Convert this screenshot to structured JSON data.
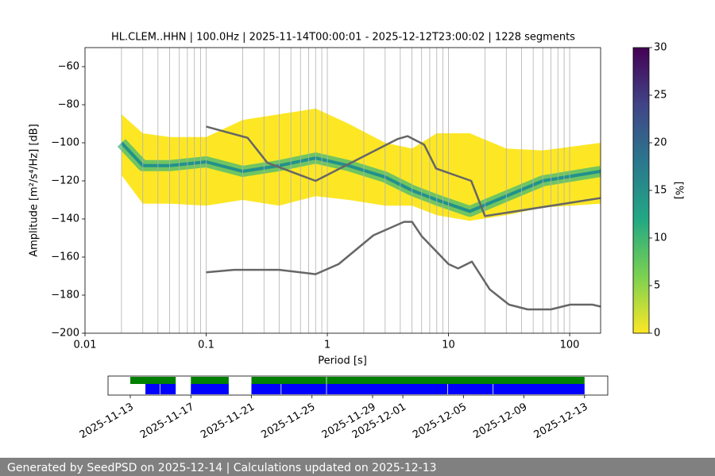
{
  "chart_data": {
    "type": "ppsd",
    "title": "HL.CLEM..HHN | 100.0Hz | 2025-11-14T00:00:01 - 2025-12-12T23:00:02 | 1228 segments",
    "x_label": "Period [s]",
    "y_label": "Amplitude [m²/s⁴/Hz] [dB]",
    "log_x": true,
    "xlim": [
      0.01,
      180
    ],
    "ylim": [
      -200,
      -50
    ],
    "xticks": [
      0.01,
      0.1,
      1,
      10,
      100
    ],
    "yticks": [
      {
        "value": -60,
        "label": "−60"
      },
      {
        "value": -80,
        "label": "−80"
      },
      {
        "value": -100,
        "label": "−100"
      },
      {
        "value": -120,
        "label": "−120"
      },
      {
        "value": -140,
        "label": "−140"
      },
      {
        "value": -160,
        "label": "−160"
      },
      {
        "value": -180,
        "label": "−180"
      },
      {
        "value": -200,
        "label": "−200"
      }
    ],
    "xgrid": [
      0.02,
      0.03,
      0.04,
      0.05,
      0.06,
      0.07,
      0.08,
      0.09,
      0.1,
      0.2,
      0.3,
      0.4,
      0.5,
      0.6,
      0.7,
      0.8,
      0.9,
      1,
      2,
      3,
      4,
      5,
      6,
      7,
      8,
      9,
      10,
      20,
      30,
      40,
      50,
      60,
      70,
      80,
      90,
      100
    ],
    "band": {
      "x": [
        0.02,
        0.03,
        0.05,
        0.1,
        0.2,
        0.4,
        0.8,
        1.5,
        3,
        5,
        8,
        15,
        30,
        60,
        180
      ],
      "high": [
        -85,
        -95,
        -97,
        -97,
        -88,
        -85,
        -82,
        -90,
        -100,
        -103,
        -95,
        -95,
        -103,
        -104,
        -100
      ],
      "low": [
        -117,
        -132,
        -132,
        -133,
        -130,
        -133,
        -128,
        -130,
        -133,
        -133,
        -138,
        -141,
        -138,
        -134,
        -132
      ],
      "mode": [
        -100,
        -112,
        -112,
        -110,
        -115,
        -112,
        -108,
        -112,
        -118,
        -125,
        -130,
        -136,
        -128,
        -120,
        -115
      ],
      "band_color": "#fde725",
      "mode_color": "#35b779",
      "mode_core_color": "#21918c"
    },
    "noise_models": {
      "color": "#666666",
      "high": {
        "x": [
          0.1,
          0.22,
          0.32,
          0.8,
          3.8,
          4.6,
          6.3,
          7.9,
          15.4,
          20,
          180
        ],
        "values": [
          -91.5,
          -97.4,
          -110.5,
          -120,
          -98,
          -96.5,
          -101,
          -113.5,
          -120,
          -138.5,
          -129
        ]
      },
      "low": {
        "x": [
          0.1,
          0.17,
          0.4,
          0.8,
          1.24,
          2.4,
          4.3,
          5,
          6,
          10,
          12,
          15.6,
          21.9,
          31.6,
          45,
          70,
          101,
          154,
          180
        ],
        "values": [
          -168,
          -166.7,
          -166.7,
          -169,
          -163.7,
          -148.6,
          -141.5,
          -141.5,
          -149,
          -163.7,
          -166,
          -162.4,
          -177,
          -185,
          -187.5,
          -187.5,
          -185,
          -185,
          -186
        ]
      }
    },
    "colorbar": {
      "label": "[%]",
      "lim": [
        0,
        30
      ],
      "ticks": [
        0,
        5,
        10,
        15,
        20,
        25,
        30
      ],
      "colormap": [
        "#fde725",
        "#7ad151",
        "#22a884",
        "#2a788e",
        "#414487",
        "#440154"
      ]
    },
    "availability": {
      "xlim": [
        "2025-11-11T12:45:00Z",
        "2025-12-14T12:45:00Z"
      ],
      "xticks": [
        "2025-11-13",
        "2025-11-17",
        "2025-11-21",
        "2025-11-25",
        "2025-11-29",
        "2025-12-01",
        "2025-12-05",
        "2025-12-09",
        "2025-12-13"
      ],
      "data_color": "#008000",
      "psd_color": "#0000ff",
      "data": [
        {
          "start": "2025-11-13T00:00:00Z",
          "end": "2025-11-16T00:00:00Z"
        },
        {
          "start": "2025-11-17T00:00:00Z",
          "end": "2025-11-19T12:00:00Z"
        },
        {
          "start": "2025-11-21T00:00:00Z",
          "end": "2025-11-25T22:30:00Z"
        },
        {
          "start": "2025-11-25T23:30:00Z",
          "end": "2025-12-13T00:00:00Z"
        }
      ],
      "psd": [
        {
          "start": "2025-11-14T00:00:00Z",
          "end": "2025-11-14T22:30:00Z"
        },
        {
          "start": "2025-11-14T23:30:00Z",
          "end": "2025-11-16T00:00:00Z"
        },
        {
          "start": "2025-11-17T00:00:00Z",
          "end": "2025-11-19T12:00:00Z"
        },
        {
          "start": "2025-11-21T00:00:00Z",
          "end": "2025-11-22T22:30:00Z"
        },
        {
          "start": "2025-11-22T23:30:00Z",
          "end": "2025-11-25T22:30:00Z"
        },
        {
          "start": "2025-11-25T23:30:00Z",
          "end": "2025-12-03T22:30:00Z"
        },
        {
          "start": "2025-12-03T23:30:00Z",
          "end": "2025-12-06T22:30:00Z"
        },
        {
          "start": "2025-12-06T23:30:00Z",
          "end": "2025-12-13T00:00:00Z"
        }
      ]
    },
    "footer": "Generated by SeedPSD on 2025-12-14 | Calculations updated on 2025-12-13"
  }
}
